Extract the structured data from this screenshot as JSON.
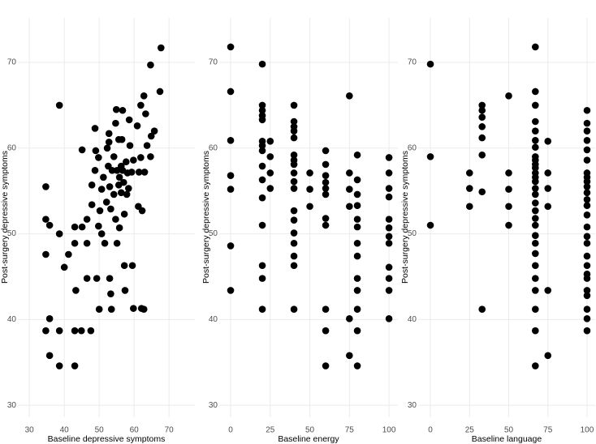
{
  "chart_data": [
    {
      "type": "scatter",
      "x_label": "Baseline depressive symptoms",
      "y_label": "Post-surgery depressive symptoms",
      "color": "#000000",
      "grid": true,
      "xlim": [
        26.7,
        77.4
      ],
      "ylim": [
        28.6,
        75.2
      ],
      "xticks": [
        30,
        40,
        50,
        60,
        70
      ],
      "yticks": [
        30,
        40,
        50,
        60,
        70
      ],
      "x": [
        34.7,
        34.7,
        34.7,
        34.7,
        35.8,
        35.8,
        35.8,
        38.6,
        38.6,
        38.6,
        38.6,
        40,
        41.2,
        43,
        43,
        43,
        43,
        43.3,
        44.9,
        45.1,
        45.1,
        46.5,
        46.5,
        46.5,
        47.6,
        47.9,
        47.9,
        48.8,
        48.8,
        49,
        49.3,
        49.8,
        49.8,
        50,
        50.2,
        50.7,
        50.7,
        51.2,
        51.6,
        52.1,
        52.3,
        52.6,
        52.8,
        52.8,
        53,
        53,
        53.3,
        53.3,
        53.5,
        53.7,
        54.2,
        54.2,
        54.7,
        54.7,
        54.9,
        55.1,
        55.1,
        55.6,
        55.6,
        55.8,
        55.8,
        56.3,
        56.3,
        56.5,
        56.7,
        56.7,
        57,
        57.2,
        57.2,
        57.4,
        57.7,
        57.9,
        58.1,
        58.4,
        58.6,
        58.8,
        59.3,
        59.5,
        59.8,
        59.8,
        60.9,
        61.2,
        61.4,
        61.9,
        61.9,
        62.1,
        62.3,
        62.8,
        62.8,
        63,
        63.3,
        63.7,
        64.7,
        64.7,
        64.9,
        65.8,
        67.4,
        67.7
      ],
      "y": [
        55.5,
        51.7,
        47.6,
        38.7,
        51,
        40.1,
        35.8,
        65,
        50,
        38.7,
        34.6,
        46.1,
        47.6,
        34.6,
        38.7,
        50.8,
        48.9,
        43.4,
        38.7,
        59.8,
        50.8,
        48.9,
        44.8,
        51.7,
        38.7,
        55.7,
        53.4,
        62.3,
        57.4,
        59.7,
        44.8,
        58.9,
        50.9,
        41.2,
        52.7,
        55.2,
        50,
        56.6,
        48.9,
        53.7,
        60,
        57.9,
        61.7,
        60.7,
        55.5,
        44.8,
        52.9,
        43,
        41.2,
        57.4,
        59,
        54.6,
        62.9,
        51.7,
        64.5,
        57.4,
        48.9,
        61,
        55.7,
        56.6,
        50.7,
        57.9,
        54.8,
        61,
        64.4,
        57.4,
        56,
        52.3,
        46.3,
        43.4,
        58.4,
        54.6,
        57.1,
        55.3,
        63.3,
        60.3,
        57.2,
        46.3,
        58.6,
        41.3,
        62.6,
        53.2,
        57.2,
        65,
        58.9,
        41.3,
        52.7,
        41.2,
        66.1,
        57.2,
        64,
        60.3,
        59,
        69.7,
        61.4,
        62,
        66.6,
        71.7
      ]
    },
    {
      "type": "scatter",
      "x_label": "Baseline energy",
      "y_label": "Post-surgery depressive symptoms",
      "color": "#000000",
      "grid": true,
      "xlim": [
        -7.2,
        105.6
      ],
      "ylim": [
        28.6,
        75.2
      ],
      "xticks": [
        0,
        25,
        50,
        75,
        100
      ],
      "yticks": [
        30,
        40,
        50,
        60,
        70
      ],
      "x": [
        0,
        0,
        0,
        0,
        0,
        0,
        0,
        20,
        20,
        20,
        20,
        20,
        20,
        20,
        20,
        20,
        20,
        20,
        20,
        20,
        20,
        20,
        25,
        25,
        25,
        25,
        40,
        40,
        40,
        40,
        40,
        40,
        40,
        40,
        40,
        40,
        40,
        40,
        40,
        40,
        40,
        40,
        40,
        40,
        50,
        50,
        50,
        60,
        60,
        60,
        60,
        60,
        60,
        60,
        60,
        60,
        60,
        60,
        75,
        75,
        75,
        75,
        75,
        75,
        80,
        80,
        80,
        80,
        80,
        80,
        80,
        80,
        80,
        80,
        80,
        80,
        80,
        100,
        100,
        100,
        100,
        100,
        100,
        100,
        100,
        100,
        100,
        100,
        100
      ],
      "y": [
        71.8,
        66.6,
        60.9,
        56.8,
        55.2,
        48.6,
        43.4,
        69.8,
        65,
        64.4,
        63.8,
        63.3,
        60.8,
        60.3,
        59.7,
        57.9,
        56.3,
        54.2,
        51,
        46.3,
        44.8,
        41.2,
        60.8,
        59,
        57.1,
        55.3,
        65,
        63.1,
        62.5,
        62,
        61.2,
        59.2,
        58.6,
        58.1,
        57.1,
        56.1,
        55.3,
        52.7,
        51.6,
        50.1,
        48.9,
        47.4,
        46.3,
        41.2,
        57.1,
        55.2,
        53.2,
        59.7,
        58.1,
        56.8,
        56,
        55.3,
        54.6,
        51.8,
        51,
        41.2,
        38.7,
        34.6,
        66.1,
        57.1,
        55.2,
        53.2,
        40.1,
        35.8,
        59.2,
        56.3,
        54.6,
        53.3,
        51.7,
        50.8,
        48.9,
        47.4,
        44.8,
        43.4,
        41.2,
        38.7,
        34.6,
        58.9,
        57.1,
        55.3,
        54.3,
        51.7,
        50.7,
        49.7,
        48.9,
        46.1,
        44.8,
        43.4,
        40.1
      ]
    },
    {
      "type": "scatter",
      "x_label": "Baseline language",
      "y_label": "Post-surgery depressive symptoms",
      "color": "#000000",
      "grid": true,
      "xlim": [
        -7.8,
        105.2
      ],
      "ylim": [
        28.6,
        75.2
      ],
      "xticks": [
        0,
        25,
        50,
        75,
        100
      ],
      "yticks": [
        30,
        40,
        50,
        60,
        70
      ],
      "x": [
        0,
        0,
        0,
        25,
        25,
        25,
        33,
        33,
        33,
        33,
        33,
        33,
        33,
        33,
        50,
        50,
        50,
        50,
        50,
        67,
        67,
        67,
        67,
        67,
        67,
        67,
        67,
        67,
        67,
        67,
        67,
        67,
        67,
        67,
        67,
        67,
        67,
        67,
        67,
        67,
        67,
        67,
        67,
        67,
        67,
        67,
        67,
        67,
        75,
        75,
        75,
        75,
        75,
        75,
        100,
        100,
        100,
        100,
        100,
        100,
        100,
        100,
        100,
        100,
        100,
        100,
        100,
        100,
        100,
        100,
        100,
        100,
        100,
        100,
        100,
        100,
        100,
        100,
        100,
        100
      ],
      "y": [
        69.8,
        59,
        51,
        57.1,
        55.3,
        53.2,
        65,
        64.4,
        63.6,
        62.5,
        61.2,
        59.2,
        54.9,
        41.2,
        66.1,
        57.1,
        55.2,
        53.2,
        51,
        71.8,
        66.6,
        65,
        63.1,
        62,
        60.9,
        60.1,
        59,
        58.6,
        58.1,
        57.7,
        57.1,
        56.6,
        56.1,
        55.3,
        54.6,
        53.6,
        52.7,
        51.8,
        51,
        49.8,
        48.9,
        47.7,
        46.3,
        44.8,
        43.4,
        41.2,
        38.7,
        34.6,
        60.8,
        57.1,
        55.3,
        53.2,
        43.4,
        35.8,
        64.4,
        62.9,
        62,
        60.9,
        59.8,
        58.6,
        57.1,
        56.6,
        56.1,
        55.5,
        54.8,
        54,
        53.3,
        52.2,
        50.8,
        49.7,
        48.9,
        47.4,
        46.3,
        45.3,
        44.8,
        43.4,
        42.8,
        41.2,
        40.1,
        38.7
      ]
    }
  ]
}
